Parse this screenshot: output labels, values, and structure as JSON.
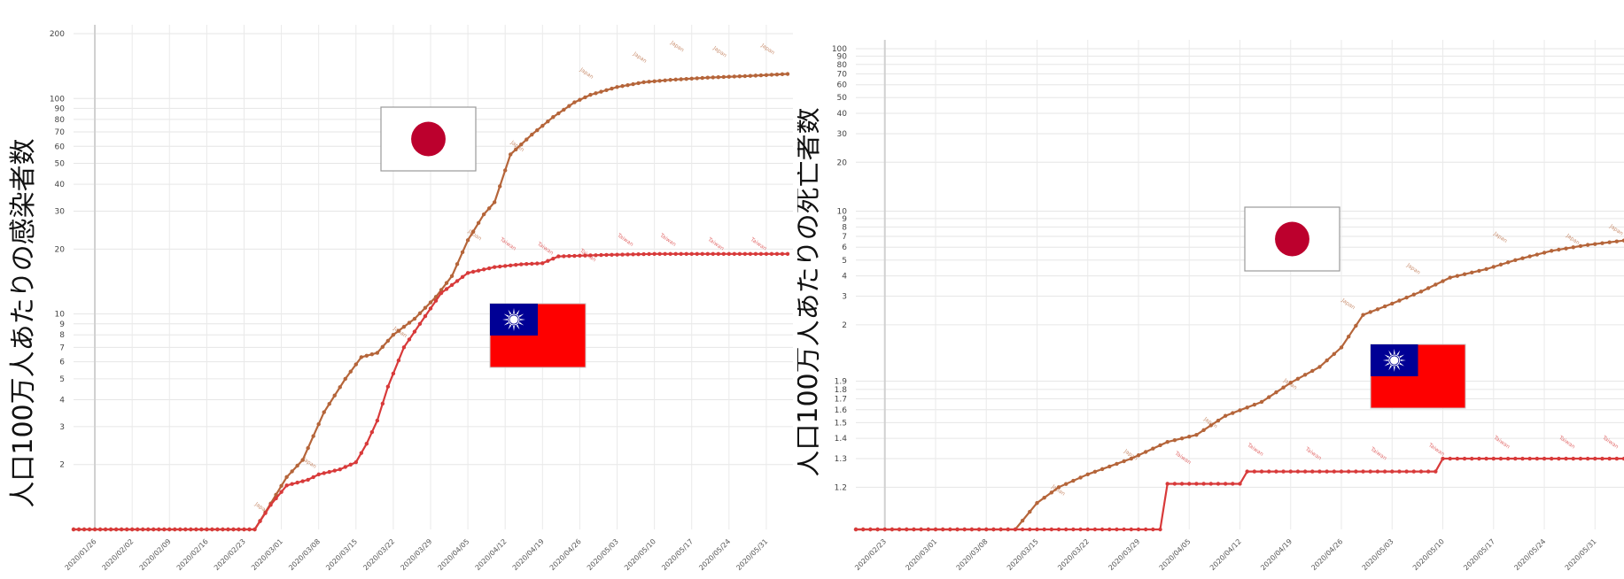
{
  "chart_data": [
    {
      "type": "line",
      "ylabel": "人口100万人あたりの感染者数",
      "xlabel": "",
      "yscale": "log",
      "ylim": [
        1,
        200
      ],
      "y_ticks": [
        "2",
        "3",
        "4",
        "5",
        "6",
        "7",
        "8",
        "9",
        "10",
        "20",
        "30",
        "40",
        "50",
        "60",
        "70",
        "80",
        "90",
        "100",
        "200"
      ],
      "x_ticks": [
        "2020/01/26",
        "2020/02/02",
        "2020/02/09",
        "2020/02/16",
        "2020/02/23",
        "2020/03/01",
        "2020/03/08",
        "2020/03/15",
        "2020/03/22",
        "2020/03/29",
        "2020/04/05",
        "2020/04/12",
        "2020/04/19",
        "2020/04/26",
        "2020/05/03",
        "2020/05/10",
        "2020/05/17",
        "2020/05/24",
        "2020/05/31"
      ],
      "x_start": "2020/01/22",
      "x_end": "2020/06/05",
      "grid": true,
      "series": [
        {
          "name": "Japan",
          "color": "#b5653a",
          "points": [
            [
              "2020/01/22",
              1
            ],
            [
              "2020/02/25",
              1
            ],
            [
              "2020/02/27",
              1.2
            ],
            [
              "2020/03/02",
              1.75
            ],
            [
              "2020/03/05",
              2.1
            ],
            [
              "2020/03/09",
              3.5
            ],
            [
              "2020/03/13",
              5
            ],
            [
              "2020/03/16",
              6.3
            ],
            [
              "2020/03/19",
              6.6
            ],
            [
              "2020/03/22",
              8
            ],
            [
              "2020/03/26",
              9.5
            ],
            [
              "2020/03/30",
              12
            ],
            [
              "2020/04/02",
              15
            ],
            [
              "2020/04/05",
              22
            ],
            [
              "2020/04/08",
              29
            ],
            [
              "2020/04/10",
              33
            ],
            [
              "2020/04/13",
              55
            ],
            [
              "2020/04/17",
              68
            ],
            [
              "2020/04/21",
              82
            ],
            [
              "2020/04/25",
              96
            ],
            [
              "2020/04/28",
              104
            ],
            [
              "2020/05/03",
              113
            ],
            [
              "2020/05/08",
              119
            ],
            [
              "2020/05/13",
              122
            ],
            [
              "2020/05/20",
              125
            ],
            [
              "2020/05/27",
              127
            ],
            [
              "2020/06/04",
              130
            ]
          ],
          "annotations": [
            [
              "2020/02/25",
              1.3
            ],
            [
              "2020/03/05",
              2.1
            ],
            [
              "2020/03/22",
              8.5
            ],
            [
              "2020/04/05",
              24
            ],
            [
              "2020/04/13",
              62
            ],
            [
              "2020/04/26",
              135
            ],
            [
              "2020/05/06",
              160
            ],
            [
              "2020/05/13",
              180
            ],
            [
              "2020/05/21",
              170
            ],
            [
              "2020/05/30",
              175
            ]
          ]
        },
        {
          "name": "Taiwan",
          "color": "#d83a3a",
          "points": [
            [
              "2020/01/22",
              1
            ],
            [
              "2020/02/25",
              1
            ],
            [
              "2020/02/28",
              1.3
            ],
            [
              "2020/03/02",
              1.6
            ],
            [
              "2020/03/06",
              1.7
            ],
            [
              "2020/03/08",
              1.8
            ],
            [
              "2020/03/12",
              1.9
            ],
            [
              "2020/03/15",
              2.05
            ],
            [
              "2020/03/17",
              2.5
            ],
            [
              "2020/03/19",
              3.2
            ],
            [
              "2020/03/21",
              4.6
            ],
            [
              "2020/03/24",
              7
            ],
            [
              "2020/03/27",
              9
            ],
            [
              "2020/03/31",
              12.5
            ],
            [
              "2020/04/05",
              15.5
            ],
            [
              "2020/04/10",
              16.5
            ],
            [
              "2020/04/15",
              17
            ],
            [
              "2020/04/19",
              17.2
            ],
            [
              "2020/04/22",
              18.5
            ],
            [
              "2020/05/01",
              18.8
            ],
            [
              "2020/05/10",
              19
            ],
            [
              "2020/06/04",
              19
            ]
          ],
          "annotations": [
            [
              "2020/04/11",
              22
            ],
            [
              "2020/04/18",
              21
            ],
            [
              "2020/04/26",
              19.5
            ],
            [
              "2020/05/03",
              23
            ],
            [
              "2020/05/11",
              23
            ],
            [
              "2020/05/20",
              22
            ],
            [
              "2020/05/28",
              22
            ]
          ]
        }
      ],
      "flags": [
        {
          "country": "Japan",
          "icon": "japan-flag-icon"
        },
        {
          "country": "Taiwan",
          "icon": "taiwan-flag-icon"
        }
      ]
    },
    {
      "type": "line",
      "ylabel": "人口100万人あたりの死亡者数",
      "xlabel": "",
      "yscale": "log",
      "ylim": [
        0.11,
        100
      ],
      "y_ticks": [
        "1.2",
        "1.3",
        "1.4",
        "1.5",
        "1.6",
        "1.7",
        "1.8",
        "1.9",
        "2",
        "3",
        "4",
        "5",
        "6",
        "7",
        "8",
        "9",
        "10",
        "20",
        "30",
        "40",
        "50",
        "60",
        "70",
        "80",
        "90",
        "100"
      ],
      "x_ticks": [
        "2020/02/23",
        "2020/03/01",
        "2020/03/08",
        "2020/03/15",
        "2020/03/22",
        "2020/03/29",
        "2020/04/05",
        "2020/04/12",
        "2020/04/19",
        "2020/04/26",
        "2020/05/03",
        "2020/05/10",
        "2020/05/17",
        "2020/05/24",
        "2020/05/31"
      ],
      "x_start": "2020/02/19",
      "x_end": "2020/06/04",
      "grid": true,
      "series": [
        {
          "name": "Japan",
          "color": "#b5653a",
          "points": [
            [
              "2020/02/19",
              0.11
            ],
            [
              "2020/03/12",
              0.11
            ],
            [
              "2020/03/15",
              0.16
            ],
            [
              "2020/03/18",
              0.2
            ],
            [
              "2020/03/22",
              0.24
            ],
            [
              "2020/03/28",
              0.3
            ],
            [
              "2020/04/02",
              0.38
            ],
            [
              "2020/04/06",
              0.42
            ],
            [
              "2020/04/10",
              0.55
            ],
            [
              "2020/04/15",
              0.67
            ],
            [
              "2020/04/19",
              0.88
            ],
            [
              "2020/04/23",
              1.1
            ],
            [
              "2020/04/26",
              1.45
            ],
            [
              "2020/04/29",
              2.3
            ],
            [
              "2020/05/03",
              2.7
            ],
            [
              "2020/05/07",
              3.2
            ],
            [
              "2020/05/11",
              3.9
            ],
            [
              "2020/05/16",
              4.4
            ],
            [
              "2020/05/20",
              5
            ],
            [
              "2020/05/25",
              5.7
            ],
            [
              "2020/05/30",
              6.2
            ],
            [
              "2020/06/04",
              6.6
            ]
          ],
          "annotations": [
            [
              "2020/03/17",
              0.2
            ],
            [
              "2020/03/27",
              0.33
            ],
            [
              "2020/04/07",
              0.52
            ],
            [
              "2020/04/18",
              0.9
            ],
            [
              "2020/04/26",
              2.8
            ],
            [
              "2020/05/05",
              4.6
            ],
            [
              "2020/05/17",
              7.2
            ],
            [
              "2020/05/27",
              7
            ],
            [
              "2020/06/02",
              8
            ]
          ]
        },
        {
          "name": "Taiwan",
          "color": "#d83a3a",
          "points": [
            [
              "2020/02/19",
              0.11
            ],
            [
              "2020/04/01",
              0.11
            ],
            [
              "2020/04/02",
              0.21
            ],
            [
              "2020/04/12",
              0.21
            ],
            [
              "2020/04/13",
              0.25
            ],
            [
              "2020/05/09",
              0.25
            ],
            [
              "2020/05/10",
              0.3
            ],
            [
              "2020/06/04",
              0.3
            ]
          ],
          "annotations": [
            [
              "2020/04/03",
              0.32
            ],
            [
              "2020/04/13",
              0.36
            ],
            [
              "2020/04/21",
              0.34
            ],
            [
              "2020/04/30",
              0.34
            ],
            [
              "2020/05/08",
              0.36
            ],
            [
              "2020/05/17",
              0.4
            ],
            [
              "2020/05/26",
              0.4
            ],
            [
              "2020/06/01",
              0.4
            ]
          ]
        }
      ],
      "flags": [
        {
          "country": "Japan",
          "icon": "japan-flag-icon"
        },
        {
          "country": "Taiwan",
          "icon": "taiwan-flag-icon"
        }
      ]
    }
  ]
}
